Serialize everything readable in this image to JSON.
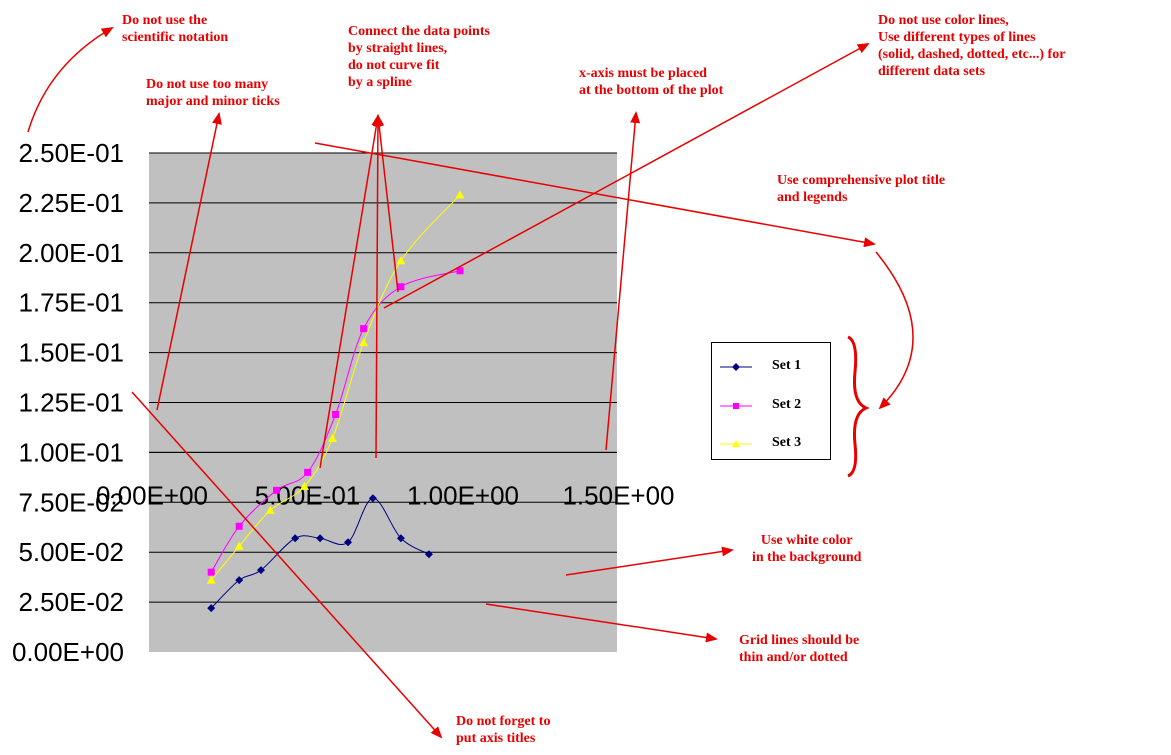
{
  "chart_data": {
    "type": "line",
    "title": "",
    "xlabel": "",
    "ylabel": "",
    "xlim": [
      0,
      1.5
    ],
    "ylim": [
      0,
      0.25
    ],
    "x_ticks": [
      "0.00E+00",
      "5.00E-01",
      "1.00E+00",
      "1.50E+00"
    ],
    "y_ticks": [
      "0.00E+00",
      "2.50E-02",
      "5.00E-02",
      "7.50E-02",
      "1.00E-01",
      "1.25E-01",
      "1.50E-01",
      "1.75E-01",
      "2.00E-01",
      "2.25E-01",
      "2.50E-01"
    ],
    "grid": "horizontal major",
    "background": "#c0c0c0",
    "legend_position": "right",
    "series": [
      {
        "name": "Set 1",
        "color": "#000080",
        "marker": "diamond",
        "x": [
          0.2,
          0.29,
          0.36,
          0.47,
          0.55,
          0.64,
          0.72,
          0.81,
          0.9
        ],
        "y": [
          0.022,
          0.036,
          0.041,
          0.057,
          0.057,
          0.055,
          0.077,
          0.057,
          0.049
        ]
      },
      {
        "name": "Set 2",
        "color": "#ff00ff",
        "marker": "square",
        "x": [
          0.2,
          0.29,
          0.41,
          0.51,
          0.6,
          0.69,
          0.81,
          1.0
        ],
        "y": [
          0.04,
          0.063,
          0.081,
          0.09,
          0.119,
          0.162,
          0.183,
          0.191
        ]
      },
      {
        "name": "Set 3",
        "color": "#ffff00",
        "marker": "triangle",
        "x": [
          0.2,
          0.29,
          0.39,
          0.5,
          0.59,
          0.69,
          0.81,
          1.0
        ],
        "y": [
          0.036,
          0.053,
          0.071,
          0.083,
          0.107,
          0.155,
          0.196,
          0.229
        ]
      }
    ]
  },
  "annotations": [
    {
      "id": "sci-notation",
      "text": "Do not use the\nscientific notation"
    },
    {
      "id": "ticks",
      "text": "Do not use too many\nmajor and minor ticks"
    },
    {
      "id": "straight-lines",
      "text": "Connect the  data points\nby straight lines,\ndo not curve fit\nby a spline"
    },
    {
      "id": "x-axis-bottom",
      "text": "x-axis must be placed\nat the bottom of the plot"
    },
    {
      "id": "line-types",
      "text": "Do not use color lines,\nUse different types of lines\n(solid, dashed, dotted, etc...) for\ndifferent data sets"
    },
    {
      "id": "title-legend",
      "text": "Use comprehensive plot title\nand legends"
    },
    {
      "id": "white-bg",
      "text": "Use white color\nin the background"
    },
    {
      "id": "grid-lines",
      "text": "Grid lines should be\nthin and/or dotted"
    },
    {
      "id": "axis-titles",
      "text": "Do not forget to\nput axis titles"
    }
  ],
  "annotation_color": "#e80000"
}
